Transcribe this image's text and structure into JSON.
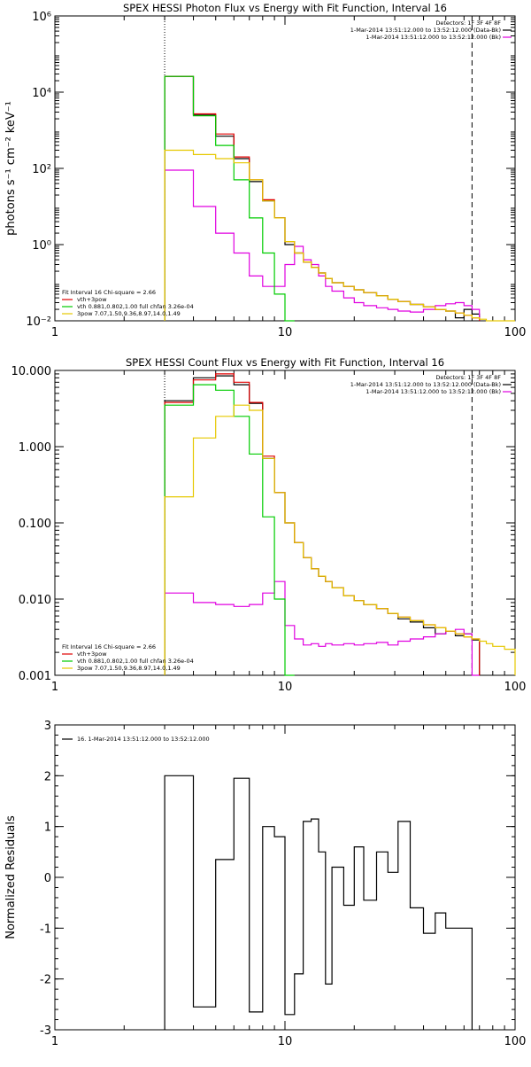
{
  "chart_data": [
    {
      "type": "line",
      "title": "SPEX HESSI Photon Flux vs Energy with Fit Function, Interval 16",
      "xlabel": "",
      "ylabel": "photons s⁻¹ cm⁻² keV⁻¹",
      "xscale": "log",
      "yscale": "log",
      "xlim": [
        1,
        100
      ],
      "ylim": [
        0.01,
        1000000
      ],
      "x_ticks": [
        1,
        10,
        100
      ],
      "x_tick_labels": [
        "1",
        "10",
        "100"
      ],
      "y_ticks": [
        0.01,
        1,
        100,
        10000,
        1000000
      ],
      "y_tick_labels": [
        "10⁻²",
        "10⁰",
        "10²",
        "10⁴",
        "10⁶"
      ],
      "vlines": [
        {
          "x": 3.0,
          "style": "dotted"
        },
        {
          "x": 65.0,
          "style": "dashed"
        }
      ],
      "header": [
        "Detectors: 1F 3F 4F 8F",
        "1-Mar-2014 13:51:12.000 to 13:52:12.000 (Data-Bk)",
        "1-Mar-2014 13:51:12.000 to 13:52:12.000 (Bk)"
      ],
      "header_colors": [
        "#000000",
        "#000000",
        "#e000e0"
      ],
      "fit_label": "Fit Interval 16   Chi-square = 2.66",
      "legend": [
        {
          "label": "vth+3pow",
          "color": "#e00000"
        },
        {
          "label": "vth 0.881,0.802,1.00  full chfan 3.26e-04",
          "color": "#00cc00"
        },
        {
          "label": "3pow 7.07,1.50,9.36,8.97,14.0,1.49",
          "color": "#e6c800"
        }
      ],
      "bin_edges": [
        3.0,
        4.0,
        5.0,
        6.0,
        7.0,
        8.0,
        9.0,
        10.0,
        11.0,
        12.0,
        13.0,
        14.0,
        15.0,
        16.0,
        18.0,
        20.0,
        22.0,
        25.0,
        28.0,
        31.0,
        35.0,
        40.0,
        45.0,
        50.0,
        55.0,
        60.0,
        65.0,
        70.0,
        75.0,
        80.0,
        90.0,
        100.0
      ],
      "series": [
        {
          "name": "Data-Bk",
          "color": "#000000",
          "values": [
            26000,
            2500,
            700,
            180,
            45,
            14,
            5,
            1.0,
            0.6,
            0.35,
            0.25,
            0.18,
            0.13,
            0.1,
            0.08,
            0.065,
            0.055,
            0.045,
            0.037,
            0.032,
            0.027,
            0.023,
            0.02,
            0.018,
            0.012,
            0.02,
            0.015,
            null,
            null,
            null,
            null
          ]
        },
        {
          "name": "Bk",
          "color": "#e000e0",
          "values": [
            90,
            10,
            2,
            0.6,
            0.15,
            0.08,
            0.08,
            0.3,
            0.9,
            0.4,
            0.3,
            0.15,
            0.08,
            0.06,
            0.04,
            0.03,
            0.025,
            0.022,
            0.02,
            0.018,
            0.017,
            0.02,
            0.025,
            0.028,
            0.03,
            0.025,
            0.02,
            null,
            null,
            null,
            null
          ]
        },
        {
          "name": "vth+3pow",
          "color": "#e00000",
          "values": [
            26000,
            2700,
            800,
            200,
            50,
            15,
            5,
            1.2,
            0.6,
            0.35,
            0.25,
            0.18,
            0.13,
            0.1,
            0.08,
            0.065,
            0.055,
            0.045,
            0.037,
            0.032,
            0.027,
            0.023,
            0.02,
            0.018,
            0.016,
            0.014,
            0.012,
            null,
            null,
            null,
            null
          ]
        },
        {
          "name": "vth",
          "color": "#00cc00",
          "values": [
            26000,
            2400,
            400,
            50,
            5,
            0.6,
            0.05,
            0.005,
            null,
            null,
            null,
            null,
            null,
            null,
            null,
            null,
            null,
            null,
            null,
            null,
            null,
            null,
            null,
            null,
            null,
            null,
            null,
            null,
            null,
            null,
            null
          ]
        },
        {
          "name": "3pow",
          "color": "#e6c800",
          "values": [
            300,
            230,
            180,
            140,
            50,
            14,
            5,
            1.2,
            0.6,
            0.35,
            0.25,
            0.18,
            0.13,
            0.1,
            0.08,
            0.065,
            0.055,
            0.045,
            0.037,
            0.032,
            0.027,
            0.023,
            0.02,
            0.018,
            0.016,
            0.014,
            0.012,
            0.011,
            0.01,
            0.009,
            0.008
          ]
        }
      ]
    },
    {
      "type": "line",
      "title": "SPEX HESSI Count Flux vs Energy with Fit Function, Interval 16",
      "xlabel": "",
      "ylabel": "",
      "xscale": "log",
      "yscale": "log",
      "xlim": [
        1,
        100
      ],
      "ylim": [
        0.001,
        10
      ],
      "x_ticks": [
        1,
        10,
        100
      ],
      "x_tick_labels": [
        "1",
        "10",
        "100"
      ],
      "y_ticks": [
        0.001,
        0.01,
        0.1,
        1,
        10
      ],
      "y_tick_labels": [
        "0.001",
        "0.010",
        "0.100",
        "1.000",
        "10.000"
      ],
      "vlines": [
        {
          "x": 3.0,
          "style": "dotted"
        },
        {
          "x": 65.0,
          "style": "dashed"
        }
      ],
      "header": [
        "Detectors: 1F 3F 4F 8F",
        "1-Mar-2014 13:51:12.000 to 13:52:12.000 (Data-Bk)",
        "1-Mar-2014 13:51:12.000 to 13:52:12.000 (Bk)"
      ],
      "header_colors": [
        "#000000",
        "#000000",
        "#e000e0"
      ],
      "fit_label": "Fit Interval 16   Chi-square = 2.66",
      "legend": [
        {
          "label": "vth+3pow",
          "color": "#e00000"
        },
        {
          "label": "vth 0.881,0.802,1.00  full chfan 3.26e-04",
          "color": "#00cc00"
        },
        {
          "label": "3pow 7.07,1.50,9.36,8.97,14.0,1.49",
          "color": "#e6c800"
        }
      ],
      "bin_edges": [
        3.0,
        4.0,
        5.0,
        6.0,
        7.0,
        8.0,
        9.0,
        10.0,
        11.0,
        12.0,
        13.0,
        14.0,
        15.0,
        16.0,
        18.0,
        20.0,
        22.0,
        25.0,
        28.0,
        31.0,
        35.0,
        40.0,
        45.0,
        50.0,
        55.0,
        60.0,
        65.0,
        70.0,
        75.0,
        80.0,
        90.0,
        100.0
      ],
      "series": [
        {
          "name": "Data-Bk",
          "color": "#000000",
          "values": [
            4.0,
            8.0,
            8.5,
            6.5,
            3.7,
            0.7,
            0.25,
            0.1,
            0.055,
            0.035,
            0.025,
            0.02,
            0.017,
            0.014,
            0.011,
            0.0095,
            0.0085,
            0.0075,
            0.0065,
            0.0055,
            0.005,
            0.0042,
            0.0035,
            0.0038,
            0.0033,
            0.0035,
            0.0029,
            null,
            null,
            null,
            null
          ]
        },
        {
          "name": "Bk",
          "color": "#e000e0",
          "values": [
            0.012,
            0.009,
            0.0085,
            0.008,
            0.0085,
            0.012,
            0.017,
            0.0045,
            0.003,
            0.0025,
            0.0026,
            0.0024,
            0.0026,
            0.0025,
            0.0026,
            0.0025,
            0.0026,
            0.0027,
            0.0025,
            0.0028,
            0.003,
            0.0032,
            0.0035,
            0.0038,
            0.004,
            0.0035,
            0.001,
            null,
            null,
            null,
            null
          ]
        },
        {
          "name": "vth+3pow",
          "color": "#e00000",
          "values": [
            3.8,
            7.5,
            9.0,
            7.0,
            3.8,
            0.75,
            0.25,
            0.1,
            0.055,
            0.035,
            0.025,
            0.02,
            0.017,
            0.014,
            0.011,
            0.0095,
            0.0085,
            0.0075,
            0.0065,
            0.0058,
            0.0052,
            0.0046,
            0.0042,
            0.0038,
            0.0035,
            0.0032,
            0.003,
            null,
            null,
            null,
            null
          ]
        },
        {
          "name": "vth",
          "color": "#00cc00",
          "values": [
            3.5,
            6.5,
            5.5,
            2.5,
            0.8,
            0.12,
            0.01,
            0.001,
            null,
            null,
            null,
            null,
            null,
            null,
            null,
            null,
            null,
            null,
            null,
            null,
            null,
            null,
            null,
            null,
            null,
            null,
            null,
            null,
            null,
            null,
            null
          ]
        },
        {
          "name": "3pow",
          "color": "#e6c800",
          "values": [
            0.22,
            1.3,
            2.5,
            3.5,
            3.0,
            0.7,
            0.25,
            0.1,
            0.055,
            0.035,
            0.025,
            0.02,
            0.017,
            0.014,
            0.011,
            0.0095,
            0.0085,
            0.0075,
            0.0065,
            0.0058,
            0.0052,
            0.0046,
            0.0042,
            0.0038,
            0.0035,
            0.0032,
            0.003,
            0.0028,
            0.0026,
            0.0024,
            0.0022
          ]
        }
      ]
    },
    {
      "type": "line",
      "title": "",
      "xlabel": "",
      "ylabel": "Normalized Residuals",
      "xscale": "log",
      "yscale": "linear",
      "xlim": [
        1,
        100
      ],
      "ylim": [
        -3,
        3
      ],
      "x_ticks": [
        1,
        10,
        100
      ],
      "x_tick_labels": [
        "1",
        "10",
        "100"
      ],
      "y_ticks": [
        -3,
        -2,
        -1,
        0,
        1,
        2,
        3
      ],
      "y_tick_labels": [
        "-3",
        "-2",
        "-1",
        "0",
        "1",
        "2",
        "3"
      ],
      "legend": [
        {
          "label": "16.  1-Mar-2014 13:51:12.000 to 13:52:12.000",
          "color": "#000000"
        }
      ],
      "bin_edges": [
        3.0,
        4.0,
        5.0,
        6.0,
        7.0,
        8.0,
        9.0,
        10.0,
        11.0,
        12.0,
        13.0,
        14.0,
        15.0,
        16.0,
        18.0,
        20.0,
        22.0,
        25.0,
        28.0,
        31.0,
        35.0,
        40.0,
        45.0,
        50.0,
        55.0,
        60.0,
        65.0
      ],
      "series": [
        {
          "name": "",
          "color": "#000000",
          "values": [
            2.0,
            -2.55,
            0.35,
            1.95,
            -2.65,
            1.0,
            0.8,
            -2.7,
            -1.9,
            1.1,
            1.15,
            0.5,
            -2.1,
            0.2,
            -0.55,
            0.6,
            -0.45,
            0.5,
            0.1,
            1.1,
            -0.6,
            -1.1,
            -0.7,
            -1.0,
            -1.0,
            -1.0
          ]
        }
      ]
    }
  ]
}
